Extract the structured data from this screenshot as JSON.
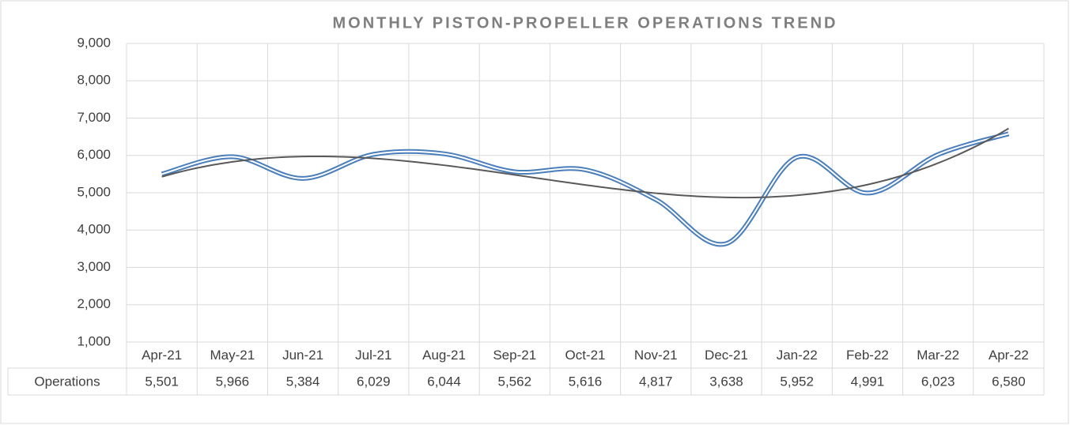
{
  "chart_data": {
    "type": "line",
    "title": "MONTHLY PISTON-PROPELLER OPERATIONS TREND",
    "categories": [
      "Apr-21",
      "May-21",
      "Jun-21",
      "Jul-21",
      "Aug-21",
      "Sep-21",
      "Oct-21",
      "Nov-21",
      "Dec-21",
      "Jan-22",
      "Feb-22",
      "Mar-22",
      "Apr-22"
    ],
    "series": [
      {
        "name": "Operations",
        "color": "#4a7ebb",
        "values": [
          5501,
          5966,
          5384,
          6029,
          6044,
          5562,
          5616,
          4817,
          3638,
          5952,
          4991,
          6023,
          6580
        ],
        "value_labels": [
          "5,501",
          "5,966",
          "5,384",
          "6,029",
          "6,044",
          "5,562",
          "5,616",
          "4,817",
          "3,638",
          "5,952",
          "4,991",
          "6,023",
          "6,580"
        ]
      }
    ],
    "ylim": [
      1000,
      9000
    ],
    "yticks": [
      {
        "value": 1000,
        "label": "1,000"
      },
      {
        "value": 2000,
        "label": "2,000"
      },
      {
        "value": 3000,
        "label": "3,000"
      },
      {
        "value": 4000,
        "label": "4,000"
      },
      {
        "value": 5000,
        "label": "5,000"
      },
      {
        "value": 6000,
        "label": "6,000"
      },
      {
        "value": 7000,
        "label": "7,000"
      },
      {
        "value": 8000,
        "label": "8,000"
      },
      {
        "value": 9000,
        "label": "9,000"
      }
    ],
    "grid": true,
    "smooth": true,
    "trendline": "polynomial",
    "trendline_color": "#595959"
  }
}
